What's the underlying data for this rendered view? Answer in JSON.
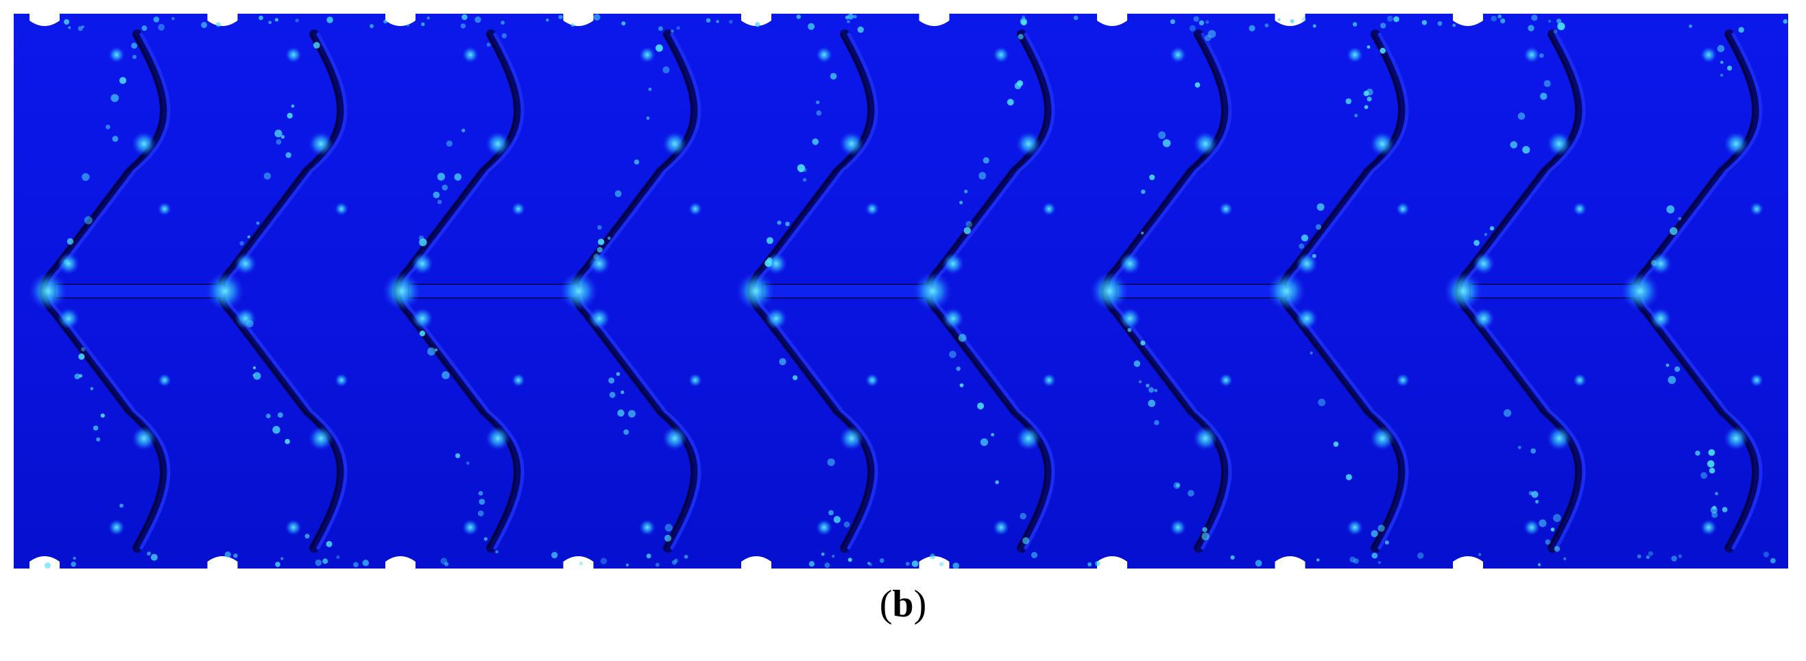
{
  "figure": {
    "caption_open": "(",
    "caption_letter": "b",
    "caption_close": ")",
    "description_colors": {
      "base": "#0a12e6",
      "base_dark": "#0410c8",
      "hot": "#3fd2ff",
      "warm": "#2ff0ff",
      "gap": "#040a6a"
    },
    "strut_count": 10,
    "notch_count": 9
  }
}
